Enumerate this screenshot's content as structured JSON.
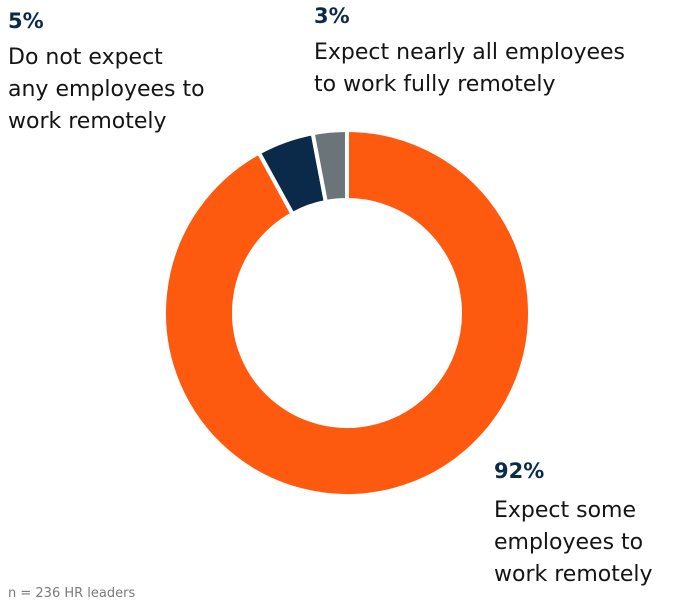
{
  "chart_data": {
    "type": "pie",
    "style": "donut",
    "series": [
      {
        "name": "Expect some employees to work remotely",
        "value": 92,
        "label": "92%",
        "lines": [
          "Expect some",
          "employees to",
          "work remotely"
        ],
        "color": "#fe5a0f"
      },
      {
        "name": "Do not expect any employees to work remotely",
        "value": 5,
        "label": "5%",
        "lines": [
          "Do not expect",
          "any employees to",
          "work remotely"
        ],
        "color": "#0b2a4a"
      },
      {
        "name": "Expect nearly all employees to work fully remotely",
        "value": 3,
        "label": "3%",
        "lines": [
          "Expect nearly all employees",
          "to work fully remotely"
        ],
        "color": "#6b7478"
      }
    ],
    "footnote": "n = 236 HR leaders"
  }
}
